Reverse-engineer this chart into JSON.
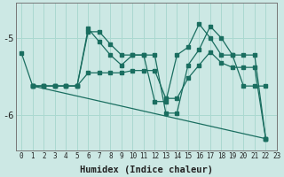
{
  "xlabel": "Humidex (Indice chaleur)",
  "background_color": "#cce8e4",
  "grid_color": "#aad8d0",
  "line_color": "#1a6e60",
  "xlim": [
    -0.5,
    23
  ],
  "ylim": [
    -6.45,
    -4.55
  ],
  "yticks": [
    -6,
    -5
  ],
  "xtick_labels": [
    "0",
    "1",
    "2",
    "3",
    "4",
    "5",
    "6",
    "7",
    "8",
    "9",
    "10",
    "11",
    "12",
    "13",
    "14",
    "15",
    "16",
    "17",
    "18",
    "19",
    "20",
    "21",
    "22",
    "23"
  ],
  "line1_x": [
    0,
    1,
    2,
    3,
    4,
    5,
    6,
    7,
    8,
    9,
    10,
    11,
    12,
    13,
    14,
    15,
    16,
    17,
    18,
    19,
    20,
    21,
    22
  ],
  "line1_y": [
    -5.2,
    -5.62,
    -5.62,
    -5.62,
    -5.62,
    -5.62,
    -4.92,
    -4.92,
    -5.08,
    -5.22,
    -5.22,
    -5.22,
    -5.82,
    -5.82,
    -5.22,
    -5.12,
    -4.82,
    -5.0,
    -5.22,
    -5.22,
    -5.62,
    -5.62,
    -5.62
  ],
  "line2_x": [
    1,
    2,
    3,
    4,
    5,
    6,
    7,
    8,
    9,
    10,
    11,
    12,
    13,
    14,
    15,
    16,
    17,
    18,
    19,
    20,
    21,
    22
  ],
  "line2_y": [
    -5.62,
    -5.62,
    -5.62,
    -5.62,
    -5.62,
    -5.45,
    -5.45,
    -5.45,
    -5.45,
    -5.42,
    -5.42,
    -5.42,
    -5.78,
    -5.78,
    -5.52,
    -5.35,
    -5.18,
    -5.32,
    -5.38,
    -5.38,
    -5.38,
    -6.3
  ],
  "line3_x": [
    1,
    2,
    3,
    4,
    5,
    6,
    7,
    8,
    9,
    10,
    11,
    12,
    13,
    14,
    15,
    16,
    17,
    18,
    19,
    20,
    21,
    22
  ],
  "line3_y": [
    -5.62,
    -5.62,
    -5.62,
    -5.62,
    -5.62,
    -4.88,
    -5.05,
    -5.22,
    -5.35,
    -5.22,
    -5.22,
    -5.22,
    -5.97,
    -5.97,
    -5.35,
    -5.15,
    -4.85,
    -5.0,
    -5.22,
    -5.22,
    -5.22,
    -6.3
  ],
  "line4_x": [
    1,
    22
  ],
  "line4_y": [
    -5.62,
    -6.3
  ]
}
